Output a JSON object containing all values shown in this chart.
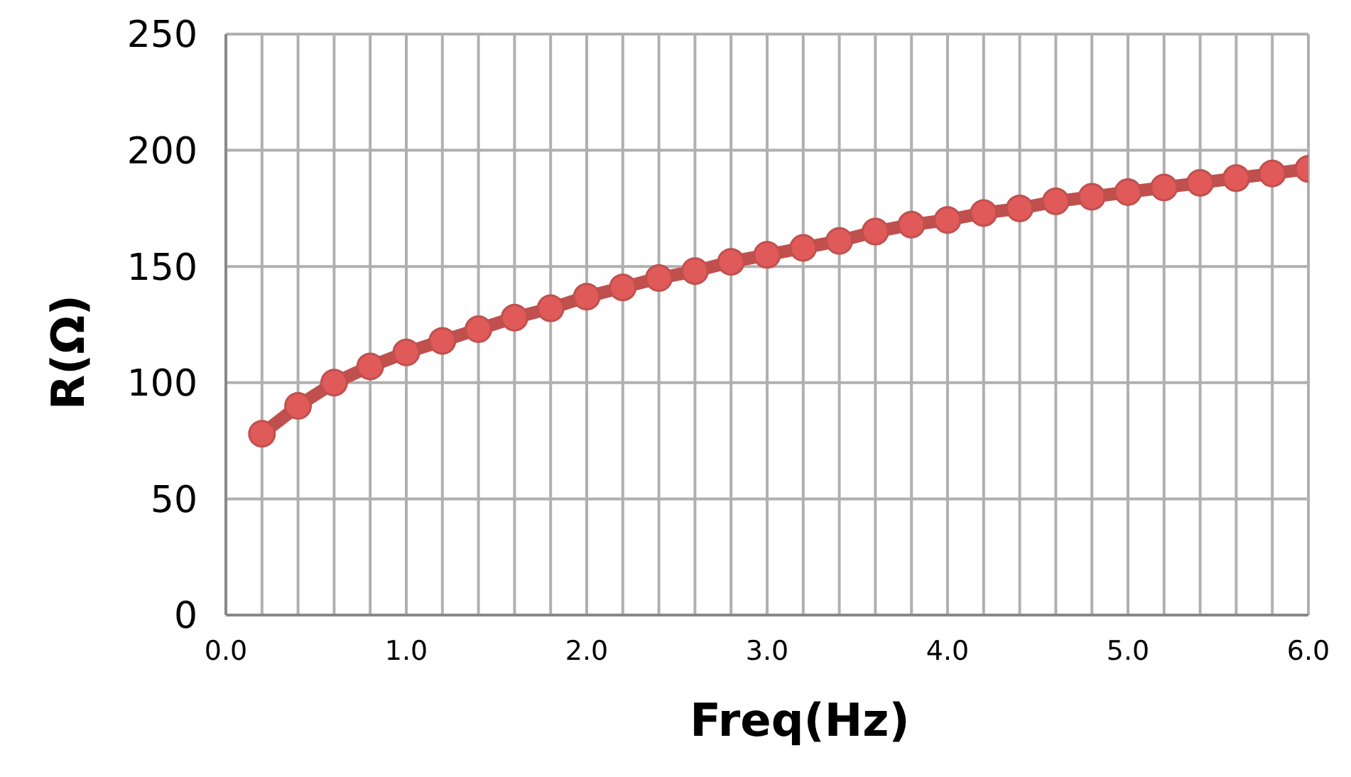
{
  "chart_data": {
    "type": "line",
    "xlabel": "Freq(Hz)",
    "ylabel": "R(Ω)",
    "x": [
      0.2,
      0.4,
      0.6,
      0.8,
      1.0,
      1.2,
      1.4,
      1.6,
      1.8,
      2.0,
      2.2,
      2.4,
      2.6,
      2.8,
      3.0,
      3.2,
      3.4,
      3.6,
      3.8,
      4.0,
      4.2,
      4.4,
      4.6,
      4.8,
      5.0,
      5.2,
      5.4,
      5.6,
      5.8,
      6.0
    ],
    "series": [
      {
        "color": "#c0504d",
        "values": [
          78,
          90,
          100,
          107,
          113,
          118,
          123,
          128,
          132,
          137,
          141,
          145,
          148,
          152,
          155,
          158,
          161,
          165,
          168,
          170,
          173,
          175,
          178,
          180,
          182,
          184,
          186,
          188,
          190,
          192
        ]
      }
    ],
    "xlim": [
      0,
      6
    ],
    "xticks": [
      {
        "value": 0,
        "label": "0.0"
      },
      {
        "value": 0.2,
        "label": null
      },
      {
        "value": 0.4,
        "label": null
      },
      {
        "value": 0.6,
        "label": null
      },
      {
        "value": 0.8,
        "label": null
      },
      {
        "value": 1,
        "label": "1.0"
      },
      {
        "value": 1.2,
        "label": null
      },
      {
        "value": 1.4,
        "label": null
      },
      {
        "value": 1.6,
        "label": null
      },
      {
        "value": 1.8,
        "label": null
      },
      {
        "value": 2,
        "label": "2.0"
      },
      {
        "value": 2.2,
        "label": null
      },
      {
        "value": 2.4,
        "label": null
      },
      {
        "value": 2.6,
        "label": null
      },
      {
        "value": 2.8,
        "label": null
      },
      {
        "value": 3,
        "label": "3.0"
      },
      {
        "value": 3.2,
        "label": null
      },
      {
        "value": 3.4,
        "label": null
      },
      {
        "value": 3.6,
        "label": null
      },
      {
        "value": 3.8,
        "label": null
      },
      {
        "value": 4,
        "label": "4.0"
      },
      {
        "value": 4.2,
        "label": null
      },
      {
        "value": 4.4,
        "label": null
      },
      {
        "value": 4.6,
        "label": null
      },
      {
        "value": 4.8,
        "label": null
      },
      {
        "value": 5,
        "label": "5.0"
      },
      {
        "value": 5.2,
        "label": null
      },
      {
        "value": 5.4,
        "label": null
      },
      {
        "value": 5.6,
        "label": null
      },
      {
        "value": 5.8,
        "label": null
      },
      {
        "value": 6,
        "label": "6.0"
      }
    ],
    "ylim": [
      0,
      250
    ],
    "yticks": [
      0,
      50,
      100,
      150,
      200,
      250
    ],
    "grid": true,
    "marker": "circle",
    "line_style": "solid",
    "legend": false
  }
}
